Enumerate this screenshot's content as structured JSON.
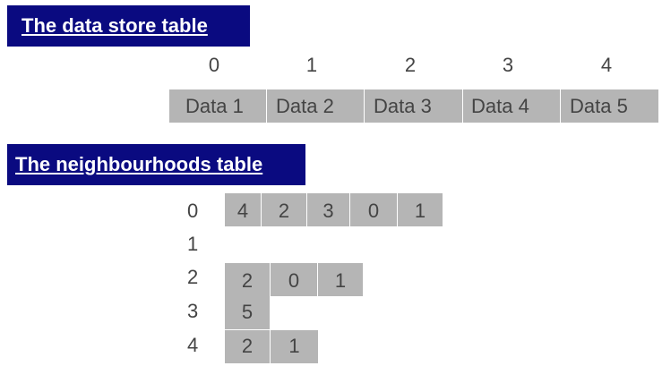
{
  "store_section": {
    "title": "The data store table",
    "indices": [
      "0",
      "1",
      "2",
      "3",
      "4"
    ],
    "cells": [
      "Data 1",
      "Data 2",
      "Data 3",
      "Data 4",
      "Data 5"
    ]
  },
  "neighbourhood_section": {
    "title": "The neighbourhoods table",
    "rows": [
      {
        "index": "0",
        "values": [
          "4",
          "2",
          "3",
          "0",
          "1"
        ]
      },
      {
        "index": "1",
        "values": []
      },
      {
        "index": "2",
        "values": [
          "2",
          "0",
          "1"
        ]
      },
      {
        "index": "3",
        "values": [
          "5"
        ]
      },
      {
        "index": "4",
        "values": [
          "2",
          "1"
        ]
      }
    ]
  },
  "colors": {
    "title_bg": "#0a0a80",
    "title_text": "#ffffff",
    "cell_bg": "#b5b5b5",
    "text": "#444444"
  }
}
